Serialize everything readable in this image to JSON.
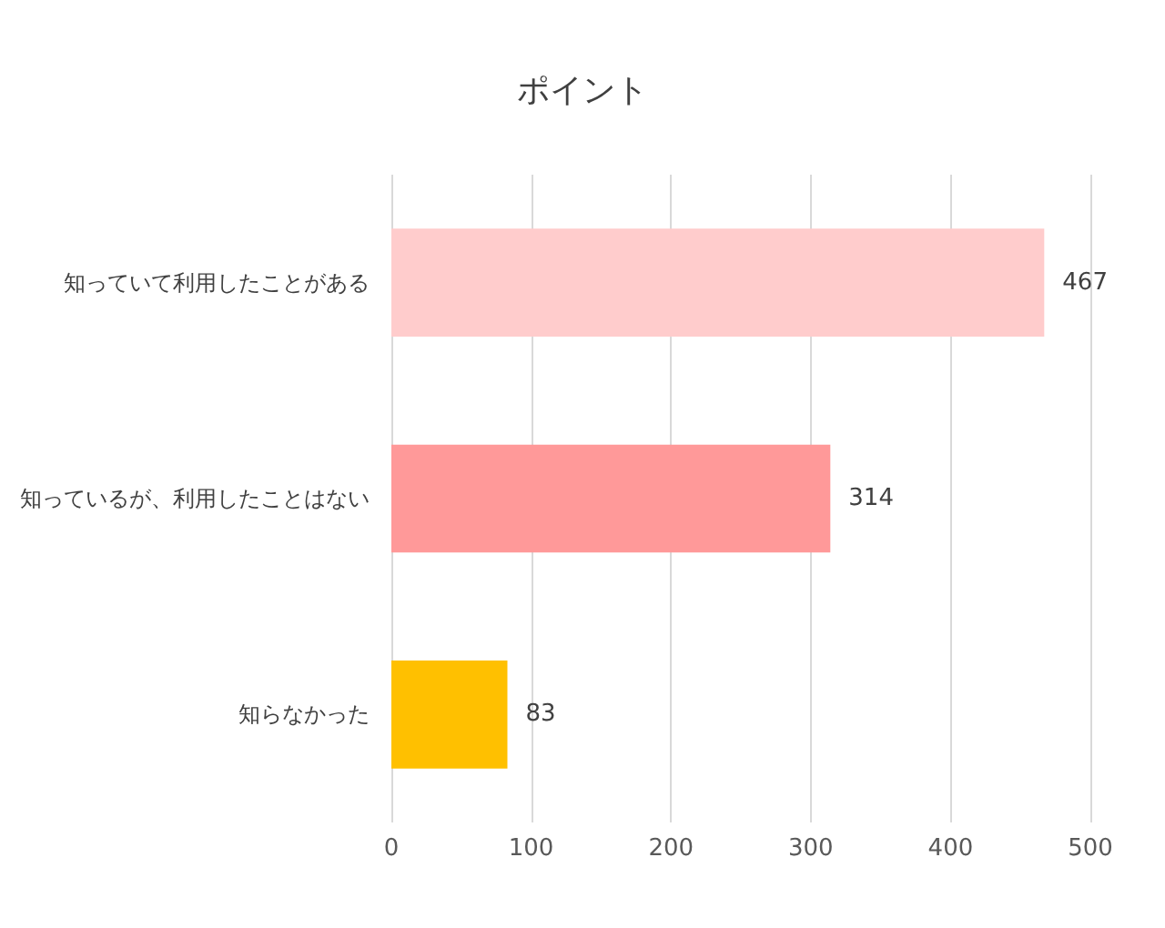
{
  "chart_data": {
    "type": "bar",
    "orientation": "horizontal",
    "title": "ポイント",
    "categories": [
      "知っていて利用したことがある",
      "知っているが、利用したことはない",
      "知らなかった"
    ],
    "values": [
      467,
      314,
      83
    ],
    "colors": [
      "#ffcccc",
      "#ff9999",
      "#ffc000"
    ],
    "xlim": [
      0,
      500
    ],
    "xticks": [
      0,
      100,
      200,
      300,
      400,
      500
    ],
    "grid": "x",
    "data_labels": true
  }
}
